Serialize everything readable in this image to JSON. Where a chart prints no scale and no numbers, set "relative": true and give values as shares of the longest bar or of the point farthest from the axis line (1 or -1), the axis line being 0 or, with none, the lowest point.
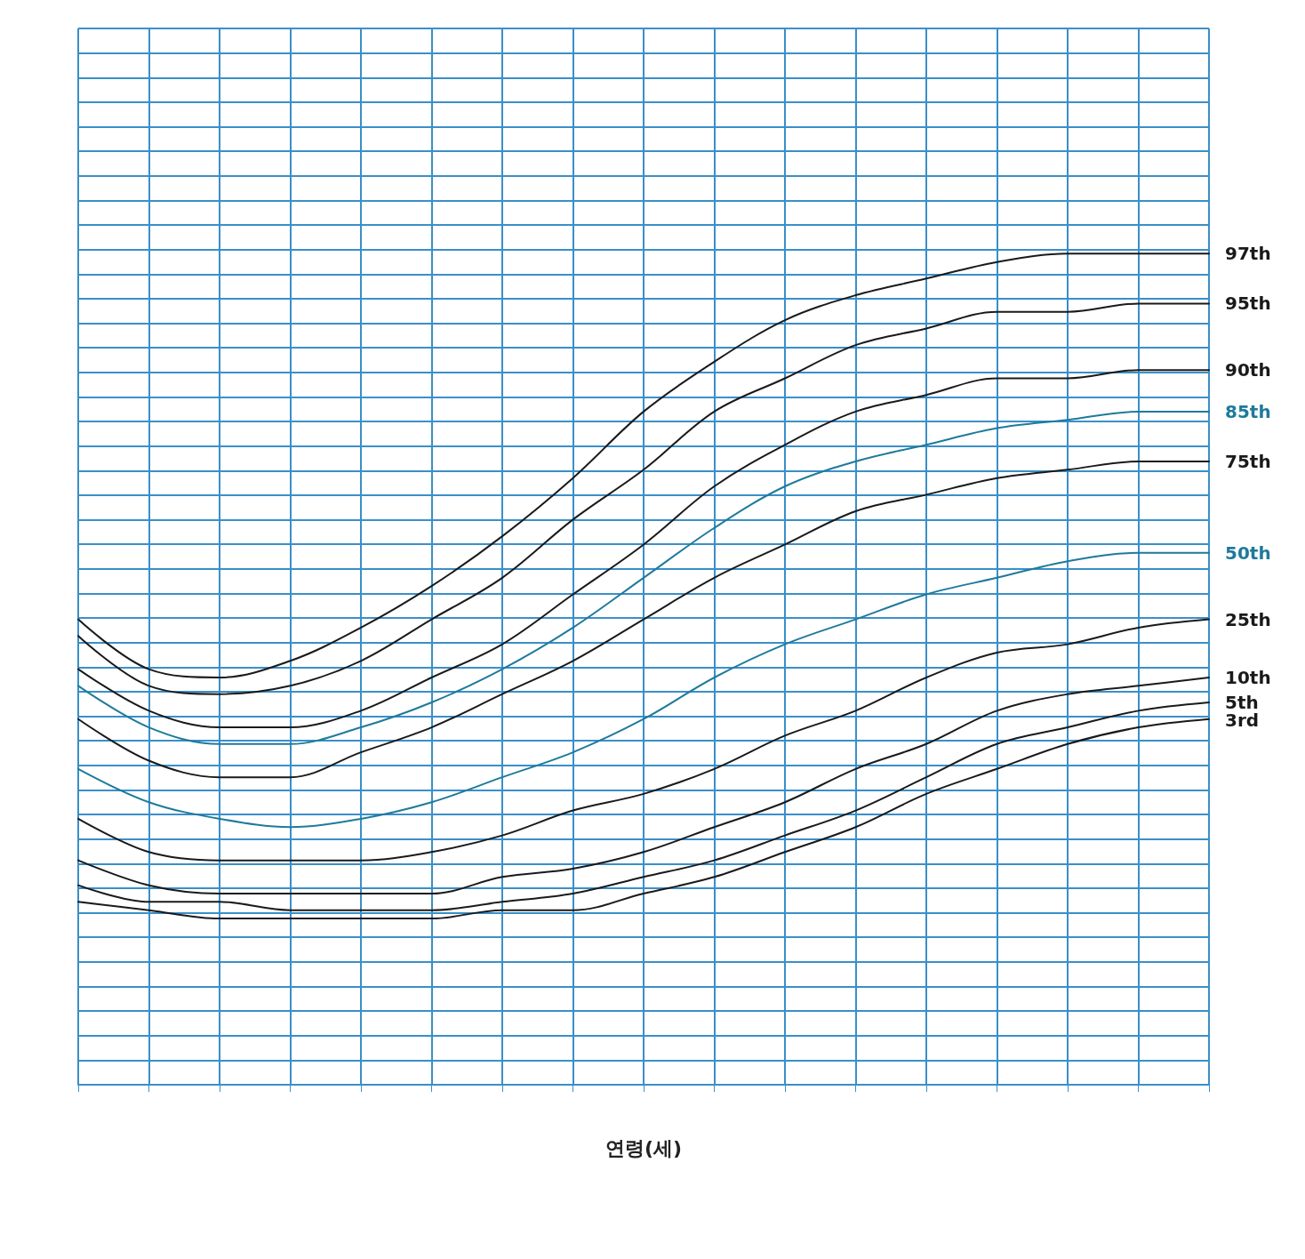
{
  "chart_data": {
    "type": "line",
    "xlabel": "연령(세)",
    "relative": true,
    "grid": true,
    "marker": "none",
    "categories": [
      null,
      null,
      null,
      null,
      null,
      null,
      null,
      null,
      null,
      null,
      null,
      null,
      null,
      null,
      null,
      null,
      null
    ],
    "series": [
      {
        "name": "97th",
        "color": "#1a1a1a",
        "values": [
          0.56,
          0.5,
          0.49,
          0.51,
          0.55,
          0.6,
          0.66,
          0.73,
          0.81,
          0.87,
          0.92,
          0.95,
          0.97,
          0.99,
          1.0,
          1,
          1
        ]
      },
      {
        "name": "95th",
        "color": "#1a1a1a",
        "values": [
          0.54,
          0.48,
          0.47,
          0.48,
          0.51,
          0.56,
          0.61,
          0.68,
          0.74,
          0.81,
          0.85,
          0.89,
          0.91,
          0.93,
          0.93,
          0.94,
          0.94
        ]
      },
      {
        "name": "90th",
        "color": "#1a1a1a",
        "values": [
          0.5,
          0.45,
          0.43,
          0.43,
          0.45,
          0.49,
          0.53,
          0.59,
          0.65,
          0.72,
          0.77,
          0.81,
          0.83,
          0.85,
          0.85,
          0.86,
          0.86
        ]
      },
      {
        "name": "85th",
        "color": "#1f7a9c",
        "values": [
          0.48,
          0.43,
          0.41,
          0.41,
          0.43,
          0.46,
          0.5,
          0.55,
          0.61,
          0.67,
          0.72,
          0.75,
          0.77,
          0.79,
          0.8,
          0.81,
          0.81
        ]
      },
      {
        "name": "75th",
        "color": "#1a1a1a",
        "values": [
          0.44,
          0.39,
          0.37,
          0.37,
          0.4,
          0.43,
          0.47,
          0.51,
          0.56,
          0.61,
          0.65,
          0.69,
          0.71,
          0.73,
          0.74,
          0.75,
          0.75
        ]
      },
      {
        "name": "50th",
        "color": "#1f7a9c",
        "values": [
          0.38,
          0.34,
          0.32,
          0.31,
          0.32,
          0.34,
          0.37,
          0.4,
          0.44,
          0.49,
          0.53,
          0.56,
          0.59,
          0.61,
          0.63,
          0.64,
          0.64
        ]
      },
      {
        "name": "25th",
        "color": "#1a1a1a",
        "values": [
          0.32,
          0.28,
          0.27,
          0.27,
          0.27,
          0.28,
          0.3,
          0.33,
          0.35,
          0.38,
          0.42,
          0.45,
          0.49,
          0.52,
          0.53,
          0.55,
          0.56
        ]
      },
      {
        "name": "10th",
        "color": "#1a1a1a",
        "values": [
          0.27,
          0.24,
          0.23,
          0.23,
          0.23,
          0.23,
          0.25,
          0.26,
          0.28,
          0.31,
          0.34,
          0.38,
          0.41,
          0.45,
          0.47,
          0.48,
          0.49
        ]
      },
      {
        "name": "5th",
        "color": "#1a1a1a",
        "values": [
          0.24,
          0.22,
          0.22,
          0.21,
          0.21,
          0.21,
          0.22,
          0.23,
          0.25,
          0.27,
          0.3,
          0.33,
          0.37,
          0.41,
          0.43,
          0.45,
          0.46
        ]
      },
      {
        "name": "3rd",
        "color": "#1a1a1a",
        "values": [
          0.22,
          0.21,
          0.2,
          0.2,
          0.2,
          0.2,
          0.21,
          0.21,
          0.23,
          0.25,
          0.28,
          0.31,
          0.35,
          0.38,
          0.41,
          0.43,
          0.44
        ]
      }
    ]
  }
}
